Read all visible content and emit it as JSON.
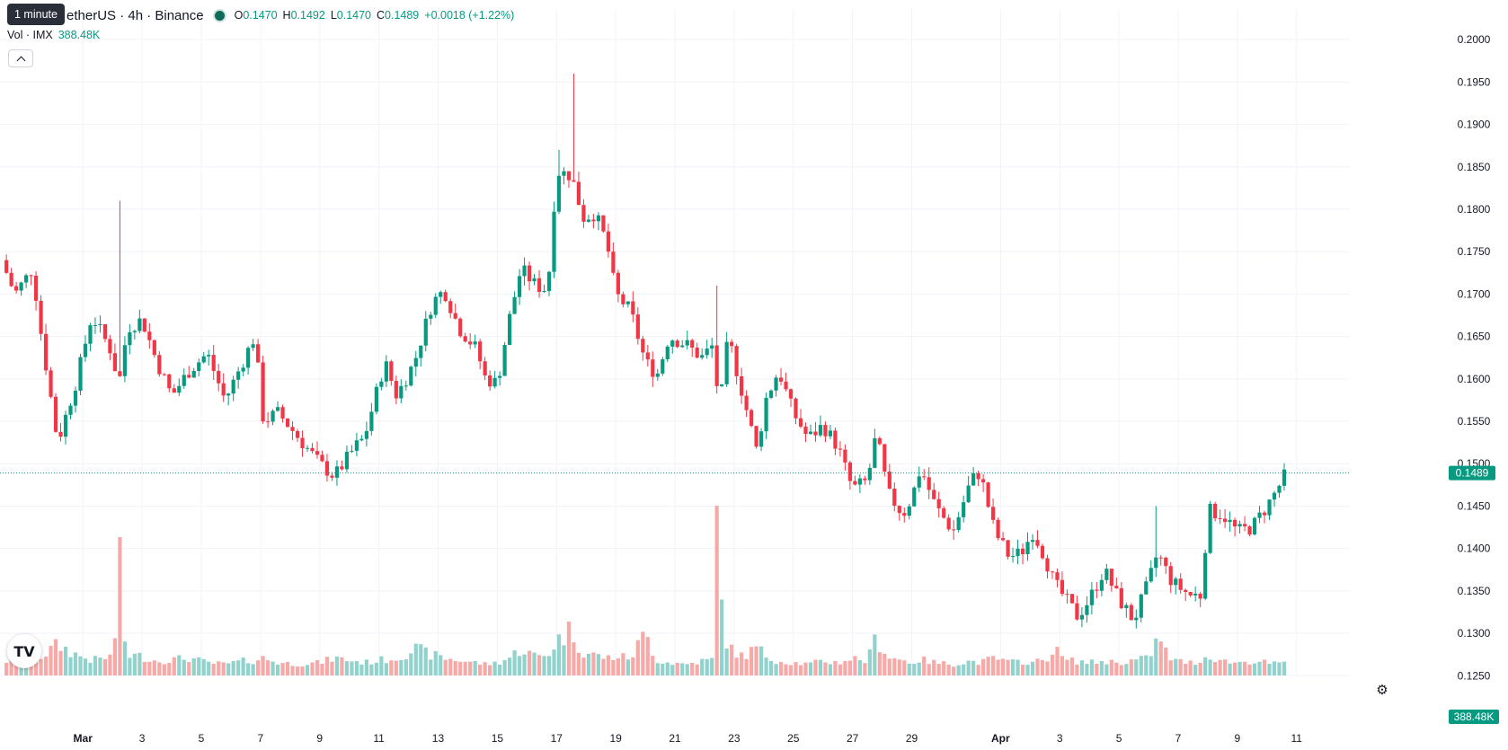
{
  "legend": {
    "tooltip": "1 minute",
    "symbol": "etherUS · 4h · Binance",
    "open_label": "O",
    "open": "0.1470",
    "high_label": "H",
    "high": "0.1492",
    "low_label": "L",
    "low": "0.1470",
    "close_label": "C",
    "close": "0.1489",
    "change": "+0.0018 (+1.22%)",
    "volume_label": "Vol · IMX",
    "volume_value": "388.48K"
  },
  "colors": {
    "up": "#089981",
    "down": "#f23645",
    "up_volume": "#92d2cc",
    "down_volume": "#f7a9a7",
    "grid": "#f0f3fa",
    "text": "#131722"
  },
  "icons": {
    "logo": "tradingview-logo-icon",
    "settings": "gear-icon",
    "collapse": "chevron-up-icon"
  },
  "chart_data": {
    "type": "candlestick",
    "interval": "4h",
    "x_axis": {
      "tick_labels": [
        {
          "label": "Mar",
          "day": 0
        },
        {
          "label": "3",
          "day": 2
        },
        {
          "label": "5",
          "day": 4
        },
        {
          "label": "7",
          "day": 6
        },
        {
          "label": "9",
          "day": 8
        },
        {
          "label": "11",
          "day": 10
        },
        {
          "label": "13",
          "day": 12
        },
        {
          "label": "15",
          "day": 14
        },
        {
          "label": "17",
          "day": 16
        },
        {
          "label": "19",
          "day": 18
        },
        {
          "label": "21",
          "day": 20
        },
        {
          "label": "23",
          "day": 22
        },
        {
          "label": "25",
          "day": 24
        },
        {
          "label": "27",
          "day": 26
        },
        {
          "label": "29",
          "day": 28
        },
        {
          "label": "Apr",
          "day": 31
        },
        {
          "label": "3",
          "day": 33
        },
        {
          "label": "5",
          "day": 35
        },
        {
          "label": "7",
          "day": 37
        },
        {
          "label": "9",
          "day": 39
        },
        {
          "label": "11",
          "day": 41
        }
      ],
      "range_days": [
        -2.8,
        42.8
      ]
    },
    "y_axis": {
      "tick_labels": [
        "0.2000",
        "0.1950",
        "0.1900",
        "0.1850",
        "0.1800",
        "0.1750",
        "0.1700",
        "0.1650",
        "0.1600",
        "0.1550",
        "0.1500",
        "0.1450",
        "0.1400",
        "0.1350",
        "0.1300",
        "0.1250"
      ],
      "range": [
        0.1245,
        0.2015
      ]
    },
    "last_price": "0.1489",
    "last_volume": "388.48K",
    "anchors": [
      {
        "day": -2.75,
        "price": 0.174,
        "vol": 12
      },
      {
        "day": -2.3,
        "price": 0.17,
        "vol": 18
      },
      {
        "day": -1.7,
        "price": 0.173,
        "vol": 14
      },
      {
        "day": -1.4,
        "price": 0.165,
        "vol": 20
      },
      {
        "day": -0.85,
        "price": 0.1525,
        "vol": 35
      },
      {
        "day": -0.2,
        "price": 0.16,
        "vol": 22
      },
      {
        "day": 0.3,
        "price": 0.1675,
        "vol": 15
      },
      {
        "day": 1.0,
        "price": 0.163,
        "vol": 20
      },
      {
        "day": 1.2,
        "price": 0.159,
        "vol": 88,
        "high": 0.181
      },
      {
        "day": 1.5,
        "price": 0.166,
        "vol": 22
      },
      {
        "day": 2.0,
        "price": 0.167,
        "vol": 20
      },
      {
        "day": 2.5,
        "price": 0.162,
        "vol": 14
      },
      {
        "day": 3.0,
        "price": 0.158,
        "vol": 16
      },
      {
        "day": 3.6,
        "price": 0.161,
        "vol": 18
      },
      {
        "day": 4.2,
        "price": 0.163,
        "vol": 12
      },
      {
        "day": 4.8,
        "price": 0.1575,
        "vol": 10
      },
      {
        "day": 5.4,
        "price": 0.162,
        "vol": 14
      },
      {
        "day": 5.8,
        "price": 0.165,
        "vol": 15
      },
      {
        "day": 6.1,
        "price": 0.155,
        "vol": 18
      },
      {
        "day": 6.6,
        "price": 0.156,
        "vol": 12
      },
      {
        "day": 7.3,
        "price": 0.153,
        "vol": 10
      },
      {
        "day": 8.0,
        "price": 0.15,
        "vol": 12
      },
      {
        "day": 8.5,
        "price": 0.1485,
        "vol": 18
      },
      {
        "day": 9.2,
        "price": 0.152,
        "vol": 14
      },
      {
        "day": 9.5,
        "price": 0.153,
        "vol": 12
      },
      {
        "day": 10.2,
        "price": 0.162,
        "vol": 16
      },
      {
        "day": 10.6,
        "price": 0.158,
        "vol": 18
      },
      {
        "day": 11.2,
        "price": 0.162,
        "vol": 30
      },
      {
        "day": 11.8,
        "price": 0.169,
        "vol": 22
      },
      {
        "day": 12.2,
        "price": 0.1705,
        "vol": 18
      },
      {
        "day": 12.7,
        "price": 0.166,
        "vol": 15
      },
      {
        "day": 13.3,
        "price": 0.1635,
        "vol": 12
      },
      {
        "day": 13.6,
        "price": 0.16,
        "vol": 10
      },
      {
        "day": 14.0,
        "price": 0.1595,
        "vol": 12
      },
      {
        "day": 14.4,
        "price": 0.167,
        "vol": 18
      },
      {
        "day": 14.8,
        "price": 0.173,
        "vol": 30
      },
      {
        "day": 15.3,
        "price": 0.171,
        "vol": 20
      },
      {
        "day": 15.7,
        "price": 0.1705,
        "vol": 22
      },
      {
        "day": 16.0,
        "price": 0.1845,
        "vol": 40,
        "high": 0.187
      },
      {
        "day": 16.5,
        "price": 0.184,
        "vol": 55,
        "high": 0.196
      },
      {
        "day": 16.9,
        "price": 0.179,
        "vol": 25
      },
      {
        "day": 17.3,
        "price": 0.1795,
        "vol": 22
      },
      {
        "day": 17.7,
        "price": 0.176,
        "vol": 18
      },
      {
        "day": 18.0,
        "price": 0.17,
        "vol": 20
      },
      {
        "day": 18.5,
        "price": 0.168,
        "vol": 18
      },
      {
        "day": 19.0,
        "price": 0.162,
        "vol": 50
      },
      {
        "day": 19.4,
        "price": 0.1605,
        "vol": 15
      },
      {
        "day": 19.8,
        "price": 0.165,
        "vol": 12
      },
      {
        "day": 20.4,
        "price": 0.164,
        "vol": 10
      },
      {
        "day": 20.9,
        "price": 0.1625,
        "vol": 14
      },
      {
        "day": 21.3,
        "price": 0.164,
        "vol": 16
      },
      {
        "day": 21.5,
        "price": 0.156,
        "vol": 108,
        "high": 0.171
      },
      {
        "day": 21.8,
        "price": 0.165,
        "vol": 30
      },
      {
        "day": 22.3,
        "price": 0.158,
        "vol": 20
      },
      {
        "day": 22.8,
        "price": 0.151,
        "vol": 32
      },
      {
        "day": 23.0,
        "price": 0.157,
        "vol": 22
      },
      {
        "day": 23.5,
        "price": 0.161,
        "vol": 14
      },
      {
        "day": 24.0,
        "price": 0.156,
        "vol": 12
      },
      {
        "day": 24.5,
        "price": 0.153,
        "vol": 10
      },
      {
        "day": 25.0,
        "price": 0.1545,
        "vol": 14
      },
      {
        "day": 25.5,
        "price": 0.152,
        "vol": 12
      },
      {
        "day": 26.0,
        "price": 0.147,
        "vol": 18
      },
      {
        "day": 26.5,
        "price": 0.148,
        "vol": 14
      },
      {
        "day": 26.8,
        "price": 0.1535,
        "vol": 45
      },
      {
        "day": 27.2,
        "price": 0.1465,
        "vol": 20
      },
      {
        "day": 27.7,
        "price": 0.144,
        "vol": 15
      },
      {
        "day": 28.0,
        "price": 0.146,
        "vol": 12
      },
      {
        "day": 28.3,
        "price": 0.1495,
        "vol": 16
      },
      {
        "day": 28.8,
        "price": 0.145,
        "vol": 12
      },
      {
        "day": 29.4,
        "price": 0.142,
        "vol": 10
      },
      {
        "day": 30.0,
        "price": 0.148,
        "vol": 14
      },
      {
        "day": 30.3,
        "price": 0.149,
        "vol": 12
      },
      {
        "day": 30.8,
        "price": 0.142,
        "vol": 18
      },
      {
        "day": 31.3,
        "price": 0.139,
        "vol": 12
      },
      {
        "day": 31.7,
        "price": 0.1395,
        "vol": 14
      },
      {
        "day": 32.1,
        "price": 0.142,
        "vol": 12
      },
      {
        "day": 32.5,
        "price": 0.139,
        "vol": 16
      },
      {
        "day": 32.8,
        "price": 0.136,
        "vol": 30
      },
      {
        "day": 33.2,
        "price": 0.134,
        "vol": 15
      },
      {
        "day": 33.6,
        "price": 0.132,
        "vol": 14
      },
      {
        "day": 34.0,
        "price": 0.134,
        "vol": 12
      },
      {
        "day": 34.5,
        "price": 0.1375,
        "vol": 14
      },
      {
        "day": 35.0,
        "price": 0.134,
        "vol": 12
      },
      {
        "day": 35.5,
        "price": 0.1315,
        "vol": 15
      },
      {
        "day": 36.0,
        "price": 0.136,
        "vol": 18
      },
      {
        "day": 36.3,
        "price": 0.1395,
        "vol": 42,
        "high": 0.145
      },
      {
        "day": 36.8,
        "price": 0.136,
        "vol": 15
      },
      {
        "day": 37.4,
        "price": 0.1345,
        "vol": 12
      },
      {
        "day": 37.8,
        "price": 0.1345,
        "vol": 14
      },
      {
        "day": 38.0,
        "price": 0.1445,
        "vol": 22
      },
      {
        "day": 38.5,
        "price": 0.144,
        "vol": 14
      },
      {
        "day": 39.0,
        "price": 0.142,
        "vol": 12
      },
      {
        "day": 39.5,
        "price": 0.1425,
        "vol": 14
      },
      {
        "day": 40.0,
        "price": 0.145,
        "vol": 12
      },
      {
        "day": 40.35,
        "price": 0.147,
        "vol": 10
      },
      {
        "day": 40.65,
        "price": 0.1489,
        "vol": 12,
        "high": 0.1495
      }
    ]
  }
}
